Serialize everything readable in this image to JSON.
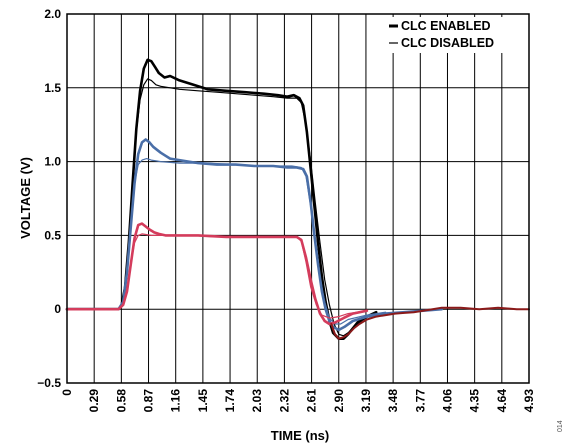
{
  "chart_data": {
    "type": "line",
    "xlabel": "TIME (ns)",
    "ylabel": "VOLTAGE (V)",
    "xlim": [
      0,
      4.93
    ],
    "ylim": [
      -0.5,
      2.0
    ],
    "x_ticks": [
      "0",
      "0.29",
      "0.58",
      "0.87",
      "1.16",
      "1.45",
      "1.74",
      "2.03",
      "2.32",
      "2.61",
      "2.90",
      "3.19",
      "3.48",
      "3.77",
      "4.06",
      "4.35",
      "4.64",
      "4.93"
    ],
    "y_ticks": [
      "2.0",
      "1.5",
      "1.0",
      "0.5",
      "0",
      "−0.5"
    ],
    "grid": true,
    "legend": {
      "placement": "top-right",
      "entries": [
        {
          "label": "CLC ENABLED",
          "style": "thick"
        },
        {
          "label": "CLC DISABLED",
          "style": "thin"
        }
      ]
    },
    "figure_id": "014",
    "series": [
      {
        "mode": "CLC ENABLED",
        "color": "#000000",
        "width": 2.6,
        "x": [
          0,
          0.55,
          0.58,
          0.62,
          0.66,
          0.7,
          0.74,
          0.78,
          0.82,
          0.86,
          0.9,
          0.94,
          0.98,
          1.04,
          1.1,
          1.2,
          1.35,
          1.5,
          1.7,
          1.9,
          2.1,
          2.25,
          2.35,
          2.42,
          2.48,
          2.52,
          2.56,
          2.6,
          2.64,
          2.68,
          2.72,
          2.76,
          2.8,
          2.84,
          2.9,
          2.95,
          3.0,
          3.05,
          3.1,
          3.2,
          3.3
        ],
        "y": [
          0,
          0,
          0.02,
          0.15,
          0.45,
          0.85,
          1.22,
          1.48,
          1.63,
          1.69,
          1.68,
          1.64,
          1.6,
          1.57,
          1.58,
          1.55,
          1.52,
          1.49,
          1.48,
          1.47,
          1.46,
          1.45,
          1.44,
          1.45,
          1.43,
          1.38,
          1.2,
          0.95,
          0.7,
          0.45,
          0.22,
          0.05,
          -0.08,
          -0.16,
          -0.2,
          -0.2,
          -0.17,
          -0.13,
          -0.09,
          -0.05,
          -0.02
        ]
      },
      {
        "mode": "CLC DISABLED",
        "color": "#000000",
        "width": 1.2,
        "x": [
          0,
          0.55,
          0.58,
          0.62,
          0.66,
          0.7,
          0.74,
          0.78,
          0.82,
          0.86,
          0.9,
          0.95,
          1.0,
          1.1,
          1.2,
          1.4,
          1.6,
          1.8,
          2.0,
          2.2,
          2.35,
          2.45,
          2.5,
          2.55,
          2.6,
          2.65,
          2.7,
          2.75,
          2.8,
          2.85,
          2.9,
          2.95,
          3.0,
          3.1,
          3.2
        ],
        "y": [
          0,
          0,
          0.02,
          0.15,
          0.45,
          0.85,
          1.2,
          1.42,
          1.52,
          1.56,
          1.55,
          1.52,
          1.51,
          1.5,
          1.49,
          1.48,
          1.47,
          1.46,
          1.45,
          1.44,
          1.43,
          1.43,
          1.4,
          1.25,
          1.0,
          0.72,
          0.45,
          0.2,
          0.03,
          -0.1,
          -0.17,
          -0.18,
          -0.16,
          -0.1,
          -0.05
        ]
      },
      {
        "mode": "CLC ENABLED",
        "color": "#4a6fa8",
        "width": 2.6,
        "x": [
          0,
          0.55,
          0.6,
          0.64,
          0.68,
          0.72,
          0.76,
          0.8,
          0.84,
          0.88,
          0.92,
          0.96,
          1.0,
          1.05,
          1.1,
          1.2,
          1.3,
          1.4,
          1.6,
          1.8,
          2.0,
          2.2,
          2.35,
          2.45,
          2.52,
          2.56,
          2.6,
          2.64,
          2.68,
          2.72,
          2.76,
          2.8,
          2.84,
          2.9,
          2.96,
          3.05,
          3.2,
          3.4,
          3.6,
          3.8,
          4.0
        ],
        "y": [
          0,
          0,
          0.05,
          0.25,
          0.55,
          0.85,
          1.05,
          1.13,
          1.15,
          1.13,
          1.1,
          1.08,
          1.06,
          1.04,
          1.02,
          1.01,
          1.0,
          0.99,
          0.98,
          0.98,
          0.97,
          0.97,
          0.96,
          0.96,
          0.95,
          0.9,
          0.72,
          0.5,
          0.3,
          0.12,
          0.0,
          -0.08,
          -0.12,
          -0.14,
          -0.12,
          -0.08,
          -0.05,
          -0.03,
          -0.02,
          -0.01,
          0
        ]
      },
      {
        "mode": "CLC DISABLED",
        "color": "#4a6fa8",
        "width": 1.2,
        "x": [
          0,
          0.55,
          0.6,
          0.64,
          0.68,
          0.72,
          0.76,
          0.8,
          0.85,
          0.9,
          1.0,
          1.2,
          1.5,
          1.8,
          2.1,
          2.4,
          2.5,
          2.55,
          2.6,
          2.65,
          2.7,
          2.75,
          2.8,
          2.86,
          2.92,
          3.0,
          3.2,
          3.4
        ],
        "y": [
          0,
          0,
          0.05,
          0.25,
          0.55,
          0.85,
          0.98,
          1.01,
          1.02,
          1.01,
          1.0,
          0.99,
          0.99,
          0.98,
          0.97,
          0.97,
          0.96,
          0.9,
          0.7,
          0.45,
          0.22,
          0.05,
          -0.06,
          -0.1,
          -0.1,
          -0.07,
          -0.04,
          -0.02
        ]
      },
      {
        "mode": "CLC ENABLED",
        "color": "#d43c5c",
        "width": 2.6,
        "x": [
          0,
          0.55,
          0.6,
          0.64,
          0.68,
          0.72,
          0.76,
          0.8,
          0.84,
          0.88,
          0.93,
          0.98,
          1.05,
          1.2,
          1.4,
          1.7,
          2.0,
          2.3,
          2.45,
          2.5,
          2.55,
          2.6,
          2.65,
          2.7,
          2.75,
          2.8,
          2.86,
          2.95,
          3.05,
          3.2
        ],
        "y": [
          0,
          0,
          0.03,
          0.12,
          0.3,
          0.48,
          0.57,
          0.58,
          0.56,
          0.54,
          0.52,
          0.51,
          0.5,
          0.5,
          0.5,
          0.49,
          0.49,
          0.49,
          0.49,
          0.47,
          0.35,
          0.2,
          0.07,
          -0.03,
          -0.08,
          -0.1,
          -0.09,
          -0.06,
          -0.03,
          -0.01
        ]
      },
      {
        "mode": "CLC DISABLED",
        "color": "#d43c5c",
        "width": 1.2,
        "x": [
          0,
          0.55,
          0.6,
          0.64,
          0.68,
          0.72,
          0.76,
          0.8,
          0.9,
          1.0,
          1.3,
          1.6,
          1.9,
          2.2,
          2.45,
          2.5,
          2.55,
          2.6,
          2.66,
          2.72,
          2.8,
          2.9,
          3.0,
          3.2
        ],
        "y": [
          0,
          0,
          0.03,
          0.12,
          0.3,
          0.45,
          0.5,
          0.51,
          0.5,
          0.5,
          0.5,
          0.49,
          0.49,
          0.49,
          0.49,
          0.46,
          0.32,
          0.15,
          0.03,
          -0.04,
          -0.06,
          -0.05,
          -0.03,
          -0.01
        ]
      },
      {
        "mode": "CLC ENABLED",
        "color": "#8b1a1a",
        "width": 2.0,
        "x": [
          2.82,
          2.86,
          2.9,
          2.95,
          3.0,
          3.06,
          3.12,
          3.2,
          3.3,
          3.4,
          3.5,
          3.6,
          3.7,
          3.8,
          3.9,
          4.0,
          4.2,
          4.4,
          4.6,
          4.8,
          4.93
        ],
        "y": [
          -0.1,
          -0.17,
          -0.2,
          -0.19,
          -0.17,
          -0.13,
          -0.1,
          -0.07,
          -0.05,
          -0.04,
          -0.03,
          -0.025,
          -0.02,
          -0.01,
          0.0,
          0.01,
          0.01,
          0.0,
          0.01,
          0.0,
          0.0
        ]
      }
    ]
  }
}
